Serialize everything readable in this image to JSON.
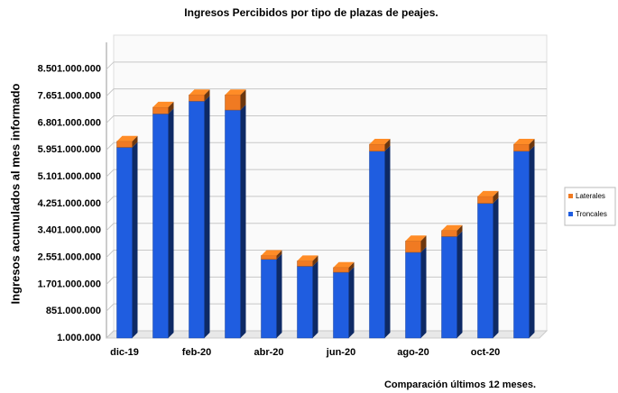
{
  "chart_data": {
    "type": "bar3d_stacked",
    "title": "Ingresos Percibidos por tipo de plazas de peajes.",
    "y_label": "Ingresos acumulados al mes informado",
    "x_label": "Comparación últimos 12 meses.",
    "categories": [
      "dic-19",
      null,
      "feb-20",
      null,
      "abr-20",
      null,
      "jun-20",
      null,
      "ago-20",
      null,
      "oct-20",
      null
    ],
    "series": [
      {
        "name": "Troncales",
        "color": "#1f5de0",
        "values": [
          6030000000,
          7090000000,
          7490000000,
          7210000000,
          2490000000,
          2270000000,
          2080000000,
          5910000000,
          2710000000,
          3210000000,
          4260000000,
          5910000000
        ]
      },
      {
        "name": "Laterales",
        "color": "#f07a22",
        "values": [
          190000000,
          210000000,
          200000000,
          480000000,
          120000000,
          170000000,
          150000000,
          220000000,
          360000000,
          190000000,
          220000000,
          220000000
        ]
      }
    ],
    "ylim": [
      1000000,
      9351000000
    ],
    "yticks": [
      {
        "value": 1000000,
        "label": "1.000.000"
      },
      {
        "value": 851000000,
        "label": "851.000.000"
      },
      {
        "value": 1701000000,
        "label": "1.701.000.000"
      },
      {
        "value": 2551000000,
        "label": "2.551.000.000"
      },
      {
        "value": 3401000000,
        "label": "3.401.000.000"
      },
      {
        "value": 4251000000,
        "label": "4.251.000.000"
      },
      {
        "value": 5101000000,
        "label": "5.101.000.000"
      },
      {
        "value": 5951000000,
        "label": "5.951.000.000"
      },
      {
        "value": 6801000000,
        "label": "6.801.000.000"
      },
      {
        "value": 7651000000,
        "label": "7.651.000.000"
      },
      {
        "value": 8501000000,
        "label": "8.501.000.000"
      }
    ],
    "grid": true,
    "legend": "right"
  }
}
